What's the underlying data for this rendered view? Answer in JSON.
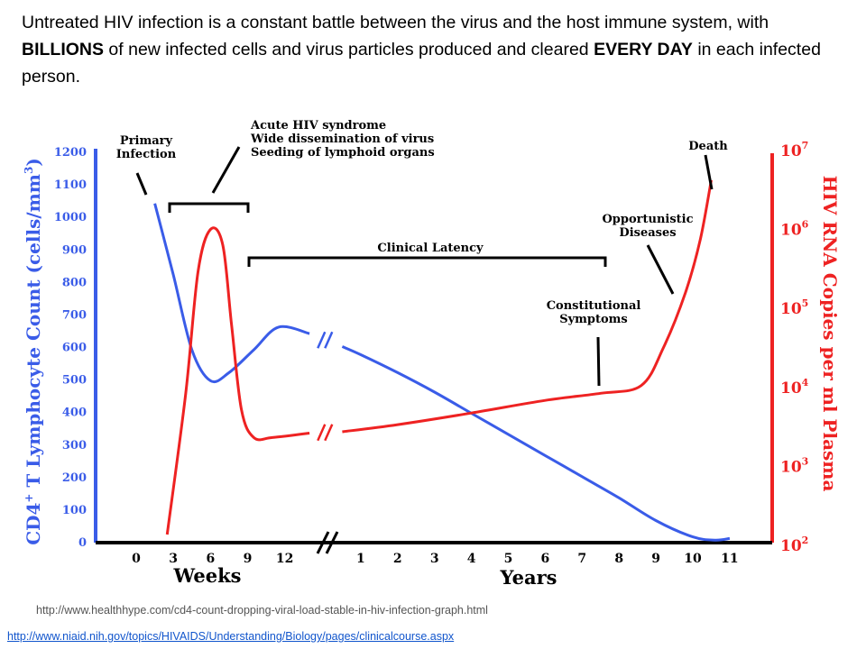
{
  "slide": {
    "text_parts": [
      {
        "t": "Untreated HIV infection is a constant battle between the virus and the host immune system, with ",
        "b": false
      },
      {
        "t": "BILLIONS",
        "b": true
      },
      {
        "t": " of new infected cells and virus particles produced and cleared ",
        "b": false
      },
      {
        "t": "EVERY DAY",
        "b": true
      },
      {
        "t": " in each infected person.",
        "b": false
      }
    ]
  },
  "sources": {
    "healthhype": "http://www.healthhype.com/cd4-count-dropping-viral-load-stable-in-hiv-infection-graph.html",
    "niaid": "http://www.niaid.nih.gov/topics/HIVAIDS/Understanding/Biology/pages/clinicalcourse.aspx"
  },
  "colors": {
    "cd4": "#3a5ce8",
    "rna": "#ee2222",
    "axis": "#000000"
  },
  "chart_data": {
    "type": "line",
    "xlabel_weeks": "Weeks",
    "xlabel_years": "Years",
    "x_ticks_weeks": [
      "0",
      "3",
      "6",
      "9",
      "12"
    ],
    "x_ticks_years": [
      "1",
      "2",
      "3",
      "4",
      "5",
      "6",
      "7",
      "8",
      "9",
      "10",
      "11"
    ],
    "y_left": {
      "label_parts": [
        "CD4",
        "+",
        " T Lymphocyte Count (cells/mm",
        "3",
        ")"
      ],
      "ticks": [
        "0",
        "100",
        "200",
        "300",
        "400",
        "500",
        "600",
        "700",
        "800",
        "900",
        "1000",
        "1100",
        "1200"
      ],
      "range": [
        0,
        1200
      ]
    },
    "y_right": {
      "label": "HIV RNA Copies per ml Plasma",
      "ticks": [
        {
          "base": "10",
          "exp": "2"
        },
        {
          "base": "10",
          "exp": "3"
        },
        {
          "base": "10",
          "exp": "4"
        },
        {
          "base": "10",
          "exp": "5"
        },
        {
          "base": "10",
          "exp": "6"
        },
        {
          "base": "10",
          "exp": "7"
        }
      ],
      "scale": "log",
      "range": [
        100,
        10000000
      ]
    },
    "series": [
      {
        "axis": "left",
        "color_key": "cd4",
        "phase_weeks": [
          [
            1.5,
            1040
          ],
          [
            3,
            820
          ],
          [
            4.5,
            590
          ],
          [
            6,
            495
          ],
          [
            7.5,
            520
          ],
          [
            9.5,
            590
          ],
          [
            11.5,
            660
          ],
          [
            14,
            640
          ]
        ],
        "phase_years": [
          [
            0.5,
            600
          ],
          [
            1,
            575
          ],
          [
            2,
            520
          ],
          [
            3,
            460
          ],
          [
            4,
            395
          ],
          [
            5,
            330
          ],
          [
            6,
            265
          ],
          [
            7,
            200
          ],
          [
            8,
            135
          ],
          [
            9,
            65
          ],
          [
            10,
            15
          ],
          [
            10.6,
            5
          ],
          [
            11,
            10
          ]
        ]
      },
      {
        "axis": "right",
        "color_key": "rna",
        "phase_weeks": [
          [
            2.5,
            130
          ],
          [
            4,
            8000
          ],
          [
            5,
            280000
          ],
          [
            6,
            950000
          ],
          [
            7,
            600000
          ],
          [
            7.7,
            60000
          ],
          [
            8.5,
            5000
          ],
          [
            9.5,
            2200
          ],
          [
            11,
            2200
          ],
          [
            14,
            2500
          ]
        ],
        "phase_years": [
          [
            0.5,
            2600
          ],
          [
            2,
            3200
          ],
          [
            4,
            4500
          ],
          [
            6,
            6500
          ],
          [
            7.5,
            8000
          ],
          [
            8.6,
            10000
          ],
          [
            9.2,
            30000
          ],
          [
            9.8,
            150000
          ],
          [
            10.2,
            700000
          ],
          [
            10.5,
            4000000
          ]
        ]
      }
    ],
    "annotations": {
      "primary_infection": [
        "Primary",
        "Infection"
      ],
      "acute": [
        "Acute HIV syndrome",
        "Wide dissemination of virus",
        "Seeding of lymphoid organs"
      ],
      "latency": "Clinical Latency",
      "death": "Death",
      "opportunistic": [
        "Opportunistic",
        "Diseases"
      ],
      "constitutional": [
        "Constitutional",
        "Symptoms"
      ]
    }
  }
}
